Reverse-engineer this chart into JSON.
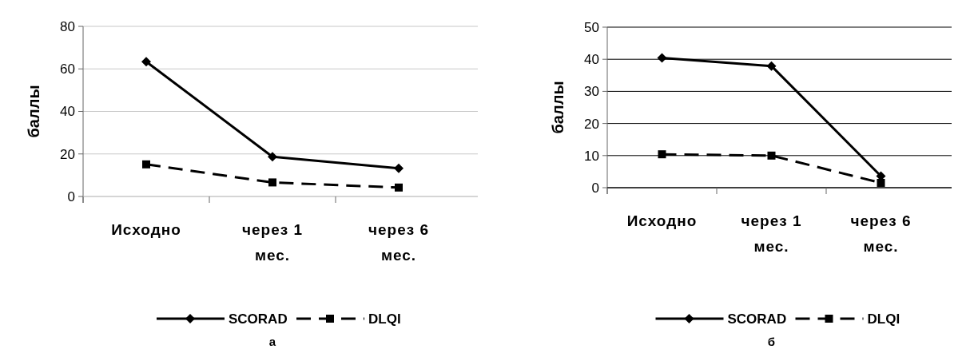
{
  "chart_data": [
    {
      "type": "line",
      "categories": [
        "Исходно",
        "через 1 мес.",
        "через 6 мес."
      ],
      "ylabel": "баллы",
      "ylim": [
        0,
        80
      ],
      "yticks": [
        0,
        20,
        40,
        60,
        80
      ],
      "grid": "y",
      "legend": "bottom",
      "annotations": [
        "а"
      ],
      "series": [
        {
          "name": "SCORAD",
          "color": "#000000",
          "values": [
            63.4,
            18.7,
            13.2
          ],
          "marker": "diamond",
          "line_style": "solid"
        },
        {
          "name": "DLQI",
          "color": "#000000",
          "values": [
            15.1,
            6.6,
            4.2
          ],
          "marker": "square",
          "line_style": "dashed"
        }
      ]
    },
    {
      "type": "line",
      "categories": [
        "Исходно",
        "через 1 мес.",
        "через 6 мес."
      ],
      "ylabel": "баллы",
      "ylim": [
        0,
        50
      ],
      "yticks": [
        0,
        10,
        20,
        30,
        40,
        50
      ],
      "grid": "y",
      "legend": "bottom",
      "annotations": [
        "б"
      ],
      "series": [
        {
          "name": "SCORAD",
          "color": "#000000",
          "values": [
            40.4,
            37.9,
            3.6
          ],
          "marker": "diamond",
          "line_style": "solid"
        },
        {
          "name": "DLQI",
          "color": "#000000",
          "values": [
            10.4,
            10.0,
            1.5
          ],
          "marker": "square",
          "line_style": "dashed"
        }
      ]
    }
  ]
}
